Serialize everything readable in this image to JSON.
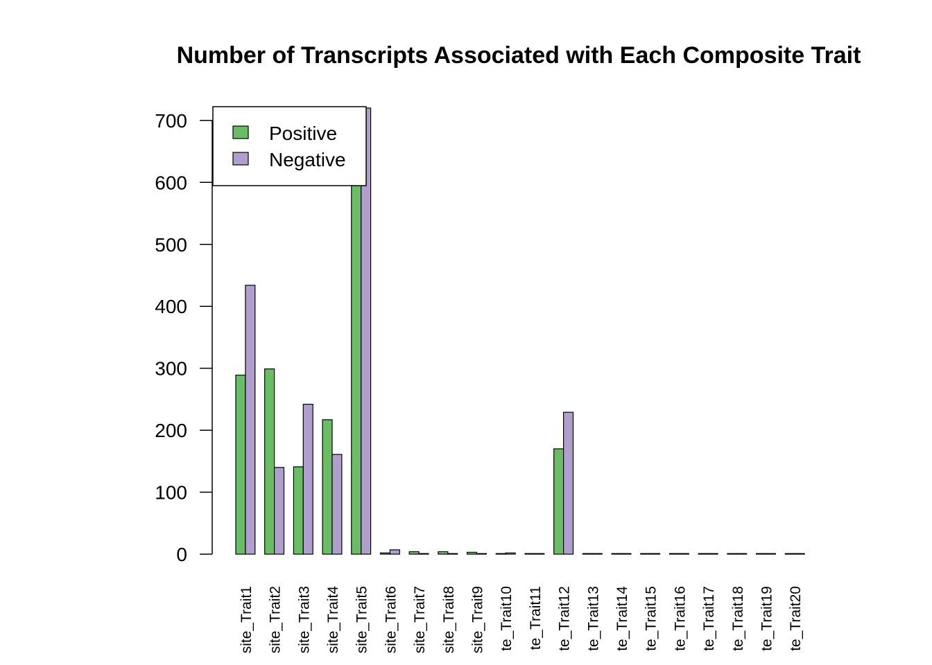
{
  "chart_data": {
    "type": "bar",
    "title": "Number of Transcripts Associated with Each Composite Trait",
    "xlabel": "",
    "ylabel": "",
    "ylim": [
      0,
      720
    ],
    "yticks": [
      "0",
      "100",
      "200",
      "300",
      "400",
      "500",
      "600",
      "700"
    ],
    "categories": [
      "site_Trait1",
      "site_Trait2",
      "site_Trait3",
      "site_Trait4",
      "site_Trait5",
      "site_Trait6",
      "site_Trait7",
      "site_Trait8",
      "site_Trait9",
      "te_Trait10",
      "te_Trait11",
      "te_Trait12",
      "te_Trait13",
      "te_Trait14",
      "te_Trait15",
      "te_Trait16",
      "te_Trait17",
      "te_Trait18",
      "te_Trait19",
      "te_Trait20"
    ],
    "series": [
      {
        "name": "Positive",
        "color": "#6ABD65",
        "values": [
          289,
          299,
          141,
          217,
          720,
          2,
          4,
          4,
          3,
          1,
          1,
          170,
          1,
          1,
          1,
          1,
          1,
          1,
          1,
          1
        ]
      },
      {
        "name": "Negative",
        "color": "#B09FCC",
        "values": [
          434,
          140,
          242,
          161,
          720,
          7,
          1,
          1,
          1,
          2,
          1,
          229,
          1,
          1,
          1,
          1,
          1,
          1,
          1,
          1
        ]
      }
    ],
    "legend_position": "top-left"
  }
}
